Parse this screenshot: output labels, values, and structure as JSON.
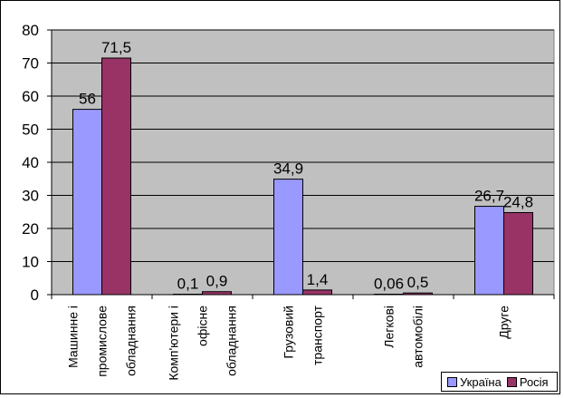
{
  "chart_data": {
    "type": "bar",
    "categories": [
      [
        "Машинне і",
        "промислове",
        "обладнання"
      ],
      [
        "Комп'ютери  і",
        "офісне",
        "обладнання"
      ],
      [
        "Грузовий",
        "транспорт"
      ],
      [
        "Легкові",
        "автомобілі"
      ],
      [
        "Друге"
      ]
    ],
    "series": [
      {
        "name": "Україна",
        "values": [
          56,
          0.1,
          34.9,
          0.06,
          26.7
        ],
        "labels": [
          "56",
          "0,1",
          "34,9",
          "0,06",
          "26,7"
        ],
        "color": "#9999ff"
      },
      {
        "name": "Росія",
        "values": [
          71.5,
          0.9,
          1.4,
          0.5,
          24.8
        ],
        "labels": [
          "71,5",
          "0,9",
          "1,4",
          "0,5",
          "24,8"
        ],
        "color": "#993366"
      }
    ],
    "ylim": [
      0,
      80
    ],
    "yticks": [
      0,
      10,
      20,
      30,
      40,
      50,
      60,
      70,
      80
    ],
    "grid": true,
    "plot_background": "#c0c0c0",
    "legend_position": "bottom-right"
  }
}
